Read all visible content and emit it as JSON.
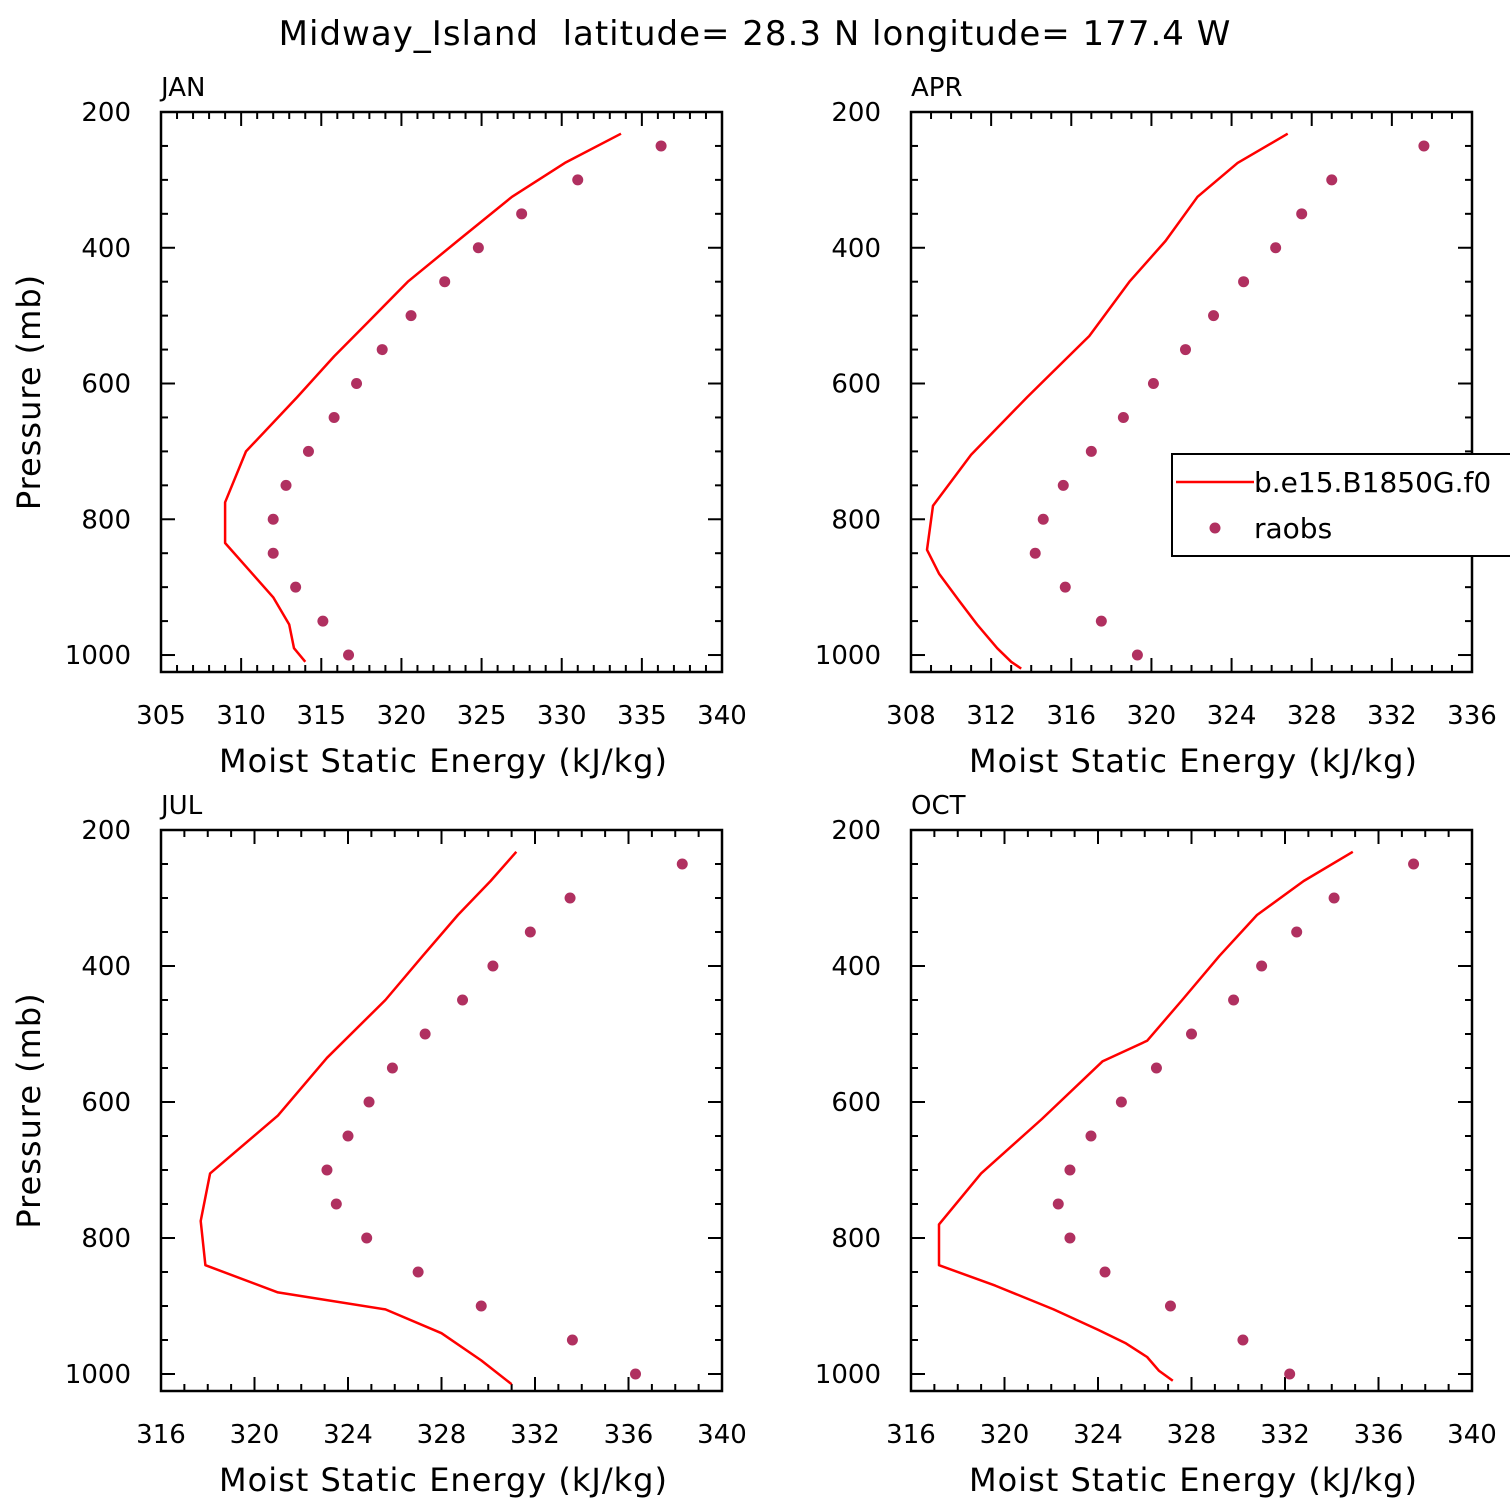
{
  "figure_title": "Midway_Island  latitude= 28.3 N longitude= 177.4 W",
  "legend": {
    "model_label": "b.e15.B1850G.f0",
    "obs_label": "raobs"
  },
  "colors": {
    "model_line": "#ff0000",
    "obs_marker": "#b03060",
    "axes": "#000000"
  },
  "chart_data": [
    {
      "type": "line",
      "panel_title": "JAN",
      "xlabel": "Moist Static Energy (kJ/kg)",
      "ylabel": "Pressure (mb)",
      "xlim": [
        305,
        340
      ],
      "xticks": [
        305,
        310,
        315,
        320,
        325,
        330,
        335,
        340
      ],
      "ylim": [
        200,
        1025
      ],
      "yticks": [
        200,
        400,
        600,
        800,
        1000
      ],
      "y_inverted": true,
      "series": [
        {
          "name": "b.e15.B1850G.f0",
          "kind": "line",
          "x": [
            333.7,
            330.2,
            326.9,
            323.5,
            320.4,
            317.9,
            315.8,
            313.5,
            310.3,
            309.0,
            309.0,
            310.5,
            312.0,
            313.0,
            313.3,
            314.0
          ],
          "y": [
            232,
            275,
            325,
            390,
            450,
            510,
            560,
            620,
            700,
            775,
            835,
            875,
            915,
            955,
            990,
            1010
          ]
        },
        {
          "name": "raobs",
          "kind": "scatter",
          "x": [
            336.2,
            331.0,
            327.5,
            324.8,
            322.7,
            320.6,
            318.8,
            317.2,
            315.8,
            314.2,
            312.8,
            312.0,
            312.0,
            313.4,
            315.1,
            316.7
          ],
          "y": [
            250,
            300,
            350,
            400,
            450,
            500,
            550,
            600,
            650,
            700,
            750,
            800,
            850,
            900,
            950,
            1000
          ]
        }
      ]
    },
    {
      "type": "line",
      "panel_title": "APR",
      "xlabel": "Moist Static Energy (kJ/kg)",
      "ylabel": "",
      "xlim": [
        308,
        336
      ],
      "xticks": [
        308,
        312,
        316,
        320,
        324,
        328,
        332,
        336
      ],
      "ylim": [
        200,
        1025
      ],
      "yticks": [
        200,
        400,
        600,
        800,
        1000
      ],
      "y_inverted": true,
      "series": [
        {
          "name": "b.e15.B1850G.f0",
          "kind": "line",
          "x": [
            326.8,
            324.3,
            322.3,
            320.7,
            318.9,
            316.9,
            313.8,
            311.0,
            309.1,
            308.8,
            309.4,
            310.4,
            311.3,
            312.3,
            313.0,
            313.5
          ],
          "y": [
            232,
            275,
            325,
            390,
            450,
            530,
            620,
            705,
            780,
            845,
            880,
            920,
            955,
            990,
            1010,
            1020
          ]
        },
        {
          "name": "raobs",
          "kind": "scatter",
          "x": [
            333.6,
            329.0,
            327.5,
            326.2,
            324.6,
            323.1,
            321.7,
            320.1,
            318.6,
            317.0,
            315.6,
            314.6,
            314.2,
            315.7,
            317.5,
            319.3
          ],
          "y": [
            250,
            300,
            350,
            400,
            450,
            500,
            550,
            600,
            650,
            700,
            750,
            800,
            850,
            900,
            950,
            1000
          ]
        }
      ]
    },
    {
      "type": "line",
      "panel_title": "JUL",
      "xlabel": "Moist Static Energy (kJ/kg)",
      "ylabel": "Pressure (mb)",
      "xlim": [
        316,
        340
      ],
      "xticks": [
        316,
        320,
        324,
        328,
        332,
        336,
        340
      ],
      "ylim": [
        200,
        1025
      ],
      "yticks": [
        200,
        400,
        600,
        800,
        1000
      ],
      "y_inverted": true,
      "series": [
        {
          "name": "b.e15.B1850G.f0",
          "kind": "line",
          "x": [
            331.2,
            330.1,
            328.7,
            327.2,
            325.6,
            323.1,
            321.0,
            318.1,
            317.7,
            317.9,
            321.0,
            325.6,
            328.0,
            329.7,
            331.0
          ],
          "y": [
            232,
            275,
            325,
            385,
            450,
            535,
            620,
            705,
            775,
            840,
            880,
            905,
            940,
            980,
            1015
          ]
        },
        {
          "name": "raobs",
          "kind": "scatter",
          "x": [
            338.3,
            333.5,
            331.8,
            330.2,
            328.9,
            327.3,
            325.9,
            324.9,
            324.0,
            323.1,
            323.5,
            324.8,
            327.0,
            329.7,
            333.6,
            336.3
          ],
          "y": [
            250,
            300,
            350,
            400,
            450,
            500,
            550,
            600,
            650,
            700,
            750,
            800,
            850,
            900,
            950,
            1000
          ]
        }
      ]
    },
    {
      "type": "line",
      "panel_title": "OCT",
      "xlabel": "Moist Static Energy (kJ/kg)",
      "ylabel": "",
      "xlim": [
        316,
        340
      ],
      "xticks": [
        316,
        320,
        324,
        328,
        332,
        336,
        340
      ],
      "ylim": [
        200,
        1025
      ],
      "yticks": [
        200,
        400,
        600,
        800,
        1000
      ],
      "y_inverted": true,
      "series": [
        {
          "name": "b.e15.B1850G.f0",
          "kind": "line",
          "x": [
            334.9,
            332.8,
            330.8,
            329.2,
            327.6,
            326.1,
            324.2,
            321.6,
            319.0,
            317.2,
            317.2,
            319.6,
            322.1,
            324.0,
            325.2,
            326.1,
            326.6,
            327.2
          ],
          "y": [
            232,
            275,
            325,
            385,
            450,
            510,
            540,
            625,
            705,
            780,
            840,
            870,
            905,
            935,
            955,
            975,
            995,
            1010
          ]
        },
        {
          "name": "raobs",
          "kind": "scatter",
          "x": [
            337.5,
            334.1,
            332.5,
            331.0,
            329.8,
            328.0,
            326.5,
            325.0,
            323.7,
            322.8,
            322.3,
            322.8,
            324.3,
            327.1,
            330.2,
            332.2
          ],
          "y": [
            250,
            300,
            350,
            400,
            450,
            500,
            550,
            600,
            650,
            700,
            750,
            800,
            850,
            900,
            950,
            1000
          ]
        }
      ]
    }
  ]
}
